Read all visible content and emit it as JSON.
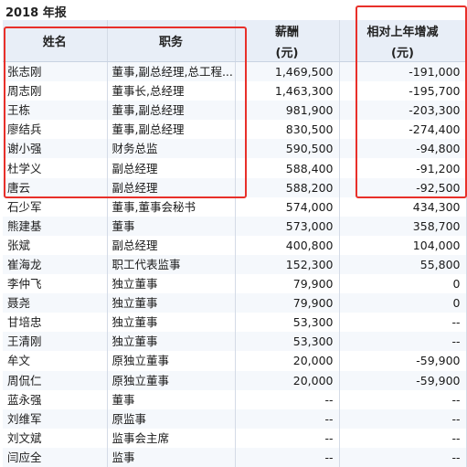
{
  "report": {
    "title": "2018 年报"
  },
  "table": {
    "headers": {
      "name": "姓名",
      "position": "职务",
      "pay": "薪酬",
      "pay_unit": "(元)",
      "change": "相对上年增减",
      "change_unit": "(元)"
    },
    "rows": [
      {
        "name": "张志刚",
        "position": "董事,副总经理,总工程...",
        "pay": "1,469,500",
        "change": "-191,000"
      },
      {
        "name": "周志刚",
        "position": "董事长,总经理",
        "pay": "1,463,300",
        "change": "-195,700"
      },
      {
        "name": "王栋",
        "position": "董事,副总经理",
        "pay": "981,900",
        "change": "-203,300"
      },
      {
        "name": "廖结兵",
        "position": "董事,副总经理",
        "pay": "830,500",
        "change": "-274,400"
      },
      {
        "name": "谢小强",
        "position": "财务总监",
        "pay": "590,500",
        "change": "-94,800"
      },
      {
        "name": "杜学义",
        "position": "副总经理",
        "pay": "588,400",
        "change": "-91,200"
      },
      {
        "name": "唐云",
        "position": "副总经理",
        "pay": "588,200",
        "change": "-92,500"
      },
      {
        "name": "石少军",
        "position": "董事,董事会秘书",
        "pay": "574,000",
        "change": "434,300"
      },
      {
        "name": "熊建基",
        "position": "董事",
        "pay": "573,000",
        "change": "358,700"
      },
      {
        "name": "张斌",
        "position": "副总经理",
        "pay": "400,800",
        "change": "104,000"
      },
      {
        "name": "崔海龙",
        "position": "职工代表监事",
        "pay": "152,300",
        "change": "55,800"
      },
      {
        "name": "李仲飞",
        "position": "独立董事",
        "pay": "79,900",
        "change": "0"
      },
      {
        "name": "聂尧",
        "position": "独立董事",
        "pay": "79,900",
        "change": "0"
      },
      {
        "name": "甘培忠",
        "position": "独立董事",
        "pay": "53,300",
        "change": "--"
      },
      {
        "name": "王清刚",
        "position": "独立董事",
        "pay": "53,300",
        "change": "--"
      },
      {
        "name": "牟文",
        "position": "原独立董事",
        "pay": "20,000",
        "change": "-59,900"
      },
      {
        "name": "周侃仁",
        "position": "原独立董事",
        "pay": "20,000",
        "change": "-59,900"
      },
      {
        "name": "蓝永强",
        "position": "董事",
        "pay": "--",
        "change": "--"
      },
      {
        "name": "刘维军",
        "position": "原监事",
        "pay": "--",
        "change": "--"
      },
      {
        "name": "刘文斌",
        "position": "监事会主席",
        "pay": "--",
        "change": "--"
      },
      {
        "name": "闫应全",
        "position": "监事",
        "pay": "--",
        "change": "--"
      }
    ]
  },
  "highlight_color": "#e8302a"
}
